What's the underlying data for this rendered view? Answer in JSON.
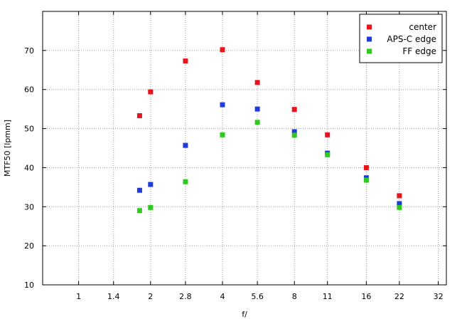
{
  "chart_data": {
    "type": "scatter",
    "xlabel": "f/",
    "ylabel": "MTF50 [lpmm]",
    "x_ticks": [
      "1",
      "1.4",
      "2",
      "2.8",
      "4",
      "5.6",
      "8",
      "11",
      "16",
      "22",
      "32"
    ],
    "ylim": [
      10,
      80
    ],
    "y_ticks": [
      10,
      20,
      30,
      40,
      50,
      60,
      70
    ],
    "grid": true,
    "legend_position": "top-right",
    "series": [
      {
        "name": "center",
        "color": "#e8141c",
        "points": [
          {
            "x": "1.8",
            "y": 53.3
          },
          {
            "x": "2",
            "y": 59.4
          },
          {
            "x": "2.8",
            "y": 67.3
          },
          {
            "x": "4",
            "y": 70.2
          },
          {
            "x": "5.6",
            "y": 61.8
          },
          {
            "x": "8",
            "y": 54.9
          },
          {
            "x": "11",
            "y": 48.4
          },
          {
            "x": "16",
            "y": 40.0
          },
          {
            "x": "22",
            "y": 32.8
          }
        ]
      },
      {
        "name": "APS-C edge",
        "color": "#1e3cdc",
        "points": [
          {
            "x": "1.8",
            "y": 34.2
          },
          {
            "x": "2",
            "y": 35.7
          },
          {
            "x": "2.8",
            "y": 45.7
          },
          {
            "x": "4",
            "y": 56.1
          },
          {
            "x": "5.6",
            "y": 55.0
          },
          {
            "x": "8",
            "y": 49.2
          },
          {
            "x": "11",
            "y": 43.7
          },
          {
            "x": "16",
            "y": 37.4
          },
          {
            "x": "22",
            "y": 30.8
          }
        ]
      },
      {
        "name": "FF edge",
        "color": "#2ec81e",
        "points": [
          {
            "x": "1.8",
            "y": 29.0
          },
          {
            "x": "2",
            "y": 29.8
          },
          {
            "x": "2.8",
            "y": 36.4
          },
          {
            "x": "4",
            "y": 48.4
          },
          {
            "x": "5.6",
            "y": 51.6
          },
          {
            "x": "8",
            "y": 48.3
          },
          {
            "x": "11",
            "y": 43.3
          },
          {
            "x": "16",
            "y": 36.8
          },
          {
            "x": "22",
            "y": 29.8
          }
        ]
      }
    ]
  }
}
